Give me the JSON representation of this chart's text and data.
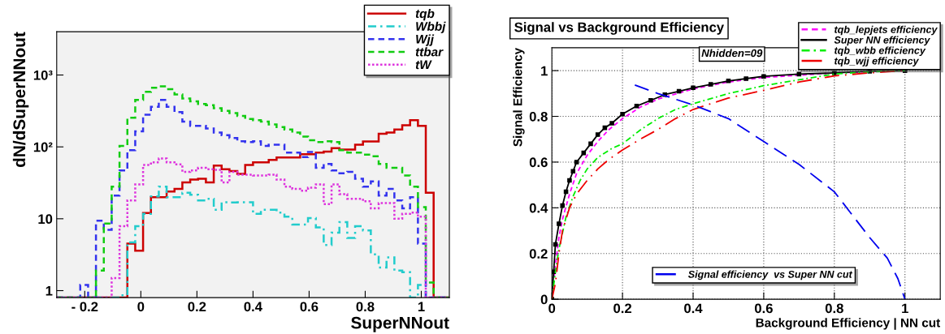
{
  "chart_data": [
    {
      "type": "histogram",
      "xlabel": "SuperNNout",
      "ylabel": "dN/dSuperNNout",
      "log": "y",
      "grid": false,
      "legend": "top right",
      "bins": [
        -0.3,
        -0.272,
        -0.244,
        -0.216,
        -0.188,
        -0.16,
        -0.132,
        -0.104,
        -0.076,
        -0.048,
        -0.02,
        0.008,
        0.036,
        0.064,
        0.092,
        0.12,
        0.148,
        0.176,
        0.204,
        0.232,
        0.26,
        0.288,
        0.316,
        0.344,
        0.372,
        0.4,
        0.428,
        0.456,
        0.484,
        0.512,
        0.54,
        0.568,
        0.596,
        0.624,
        0.652,
        0.68,
        0.708,
        0.736,
        0.764,
        0.792,
        0.82,
        0.848,
        0.876,
        0.904,
        0.932,
        0.96,
        0.988,
        1.016,
        1.044,
        1.072,
        1.1
      ],
      "xlim": [
        -0.3,
        1.1
      ],
      "xticks": [
        {
          "value": -0.2,
          "label": "- 0.2"
        },
        0,
        0.2,
        0.4,
        0.6,
        0.8,
        1
      ],
      "ylim": [
        0.8,
        4000
      ],
      "yticks": [
        1,
        10,
        {
          "value": 100,
          "label": "10²"
        },
        {
          "value": 1000,
          "label": "10³"
        }
      ],
      "series": [
        {
          "name": "tqb",
          "color": "#cc0000",
          "line_style": "solid",
          "values": [
            null,
            null,
            null,
            null,
            null,
            null,
            null,
            null,
            null,
            4.5,
            3.6,
            12,
            20,
            20,
            24,
            26,
            32,
            35,
            36,
            32,
            55,
            49,
            46,
            42,
            56,
            61,
            61,
            66,
            71,
            71,
            71,
            79,
            79,
            83,
            86,
            96,
            92,
            92,
            107,
            119,
            119,
            152,
            158,
            174,
            200,
            235,
            196,
            23,
            null,
            null
          ]
        },
        {
          "name": "Wbbj",
          "color": "#22cccc",
          "line_style": "dashdot",
          "values": [
            null,
            null,
            null,
            null,
            null,
            null,
            null,
            null,
            0.86,
            4.7,
            7.9,
            11.7,
            20.5,
            28,
            20,
            20,
            23,
            21.5,
            18,
            19,
            13.3,
            17,
            16.8,
            17,
            17,
            11.7,
            13.3,
            13.3,
            12.2,
            10.7,
            8.3,
            8.3,
            10.2,
            7.6,
            4.3,
            6.4,
            9,
            5.4,
            7.9,
            6.9,
            3.2,
            2.1,
            2.9,
            1.9,
            1.8,
            null,
            1.2,
            null,
            null,
            null
          ]
        },
        {
          "name": "Wjj",
          "color": "#3333ee",
          "line_style": "dashed",
          "values": [
            null,
            null,
            null,
            1.2,
            null,
            9.4,
            7,
            21,
            47,
            90,
            165,
            280,
            360,
            450,
            360,
            305,
            225,
            196,
            196,
            180,
            158,
            145,
            133,
            120,
            117,
            120,
            103,
            107,
            107,
            83,
            83,
            72,
            85,
            51,
            58,
            47,
            43,
            45,
            36,
            28,
            33,
            21,
            26,
            18,
            14,
            20,
            4.5,
            null,
            null,
            null
          ]
        },
        {
          "name": "ttbar",
          "color": "#11cc11",
          "line_style": "dashed",
          "values": [
            null,
            null,
            null,
            null,
            null,
            1.9,
            8.6,
            28,
            103,
            255,
            450,
            585,
            665,
            695,
            635,
            535,
            470,
            430,
            395,
            380,
            345,
            318,
            295,
            270,
            245,
            235,
            225,
            205,
            189,
            174,
            158,
            139,
            124,
            117,
            120,
            117,
            90,
            83,
            83,
            78,
            74,
            58,
            51,
            51,
            40,
            28,
            14.5,
            1.3,
            null,
            null
          ]
        },
        {
          "name": "tW",
          "color": "#dd33dd",
          "line_style": "dotted",
          "values": [
            null,
            null,
            null,
            null,
            null,
            null,
            null,
            1.5,
            7.9,
            18,
            30,
            56,
            61,
            69,
            61,
            57,
            45,
            47,
            51,
            49,
            48,
            32,
            45,
            41,
            41,
            40,
            40,
            41,
            35,
            28,
            26,
            24.5,
            27,
            30,
            16,
            30,
            22,
            19,
            19,
            17.5,
            14,
            16.5,
            16.5,
            10,
            11.7,
            12.2,
            10.7,
            null,
            null,
            null
          ]
        }
      ]
    },
    {
      "type": "line",
      "title": "Signal vs Background Efficiency",
      "xlabel": "Background Efficiency | NN cut",
      "ylabel": "Signal Efficiency",
      "grid": true,
      "legend": [
        "top right",
        "bottom"
      ],
      "annotations": [
        "Nhidden=09"
      ],
      "xlim": [
        0,
        1.1
      ],
      "xticks": [
        0,
        0.2,
        0.4,
        0.6,
        0.8,
        1
      ],
      "ylim": [
        0,
        1.1
      ],
      "yticks": [
        0,
        0.2,
        0.4,
        0.6,
        0.8,
        1
      ],
      "series": [
        {
          "name": "tqb_lepjets efficiency",
          "color": "#ff00ff",
          "line_style": "dashed",
          "x": [
            0,
            0.01,
            0.02,
            0.03,
            0.05,
            0.07,
            0.1,
            0.13,
            0.16,
            0.2,
            0.25,
            0.3,
            0.4,
            0.5,
            0.6,
            0.8,
            1
          ],
          "values": [
            0,
            0.15,
            0.27,
            0.35,
            0.46,
            0.55,
            0.63,
            0.69,
            0.74,
            0.79,
            0.84,
            0.875,
            0.92,
            0.95,
            0.97,
            0.99,
            1
          ]
        },
        {
          "name": "Super NN efficiency",
          "color": "#000000",
          "line_style": "solid",
          "marker": "square",
          "x": [
            0,
            0.005,
            0.01,
            0.02,
            0.03,
            0.04,
            0.05,
            0.06,
            0.07,
            0.09,
            0.11,
            0.13,
            0.15,
            0.17,
            0.2,
            0.24,
            0.28,
            0.32,
            0.36,
            0.4,
            0.45,
            0.5,
            0.55,
            0.6,
            0.7,
            0.8,
            0.9,
            1
          ],
          "values": [
            0,
            0.12,
            0.24,
            0.33,
            0.41,
            0.47,
            0.52,
            0.56,
            0.6,
            0.64,
            0.68,
            0.72,
            0.75,
            0.77,
            0.81,
            0.845,
            0.87,
            0.895,
            0.91,
            0.925,
            0.94,
            0.955,
            0.965,
            0.975,
            0.985,
            0.99,
            0.997,
            1
          ]
        },
        {
          "name": "tqb_wbb efficiency",
          "color": "#00ee00",
          "line_style": "dashdot",
          "x": [
            0,
            0.01,
            0.02,
            0.04,
            0.06,
            0.08,
            0.1,
            0.13,
            0.17,
            0.2,
            0.25,
            0.3,
            0.35,
            0.4,
            0.5,
            0.6,
            0.7,
            0.8,
            0.9,
            1
          ],
          "values": [
            0,
            0.12,
            0.22,
            0.36,
            0.45,
            0.52,
            0.57,
            0.62,
            0.66,
            0.68,
            0.74,
            0.79,
            0.83,
            0.855,
            0.9,
            0.934,
            0.96,
            0.985,
            0.995,
            1
          ]
        },
        {
          "name": "tqb_wjj efficiency",
          "color": "#ee0000",
          "line_style": "longdashdot",
          "x": [
            0,
            0.01,
            0.02,
            0.03,
            0.05,
            0.07,
            0.1,
            0.13,
            0.16,
            0.2,
            0.25,
            0.3,
            0.35,
            0.4,
            0.5,
            0.6,
            0.7,
            0.8,
            0.9,
            1
          ],
          "values": [
            0,
            0.07,
            0.2,
            0.3,
            0.4,
            0.46,
            0.52,
            0.57,
            0.61,
            0.653,
            0.7,
            0.742,
            0.79,
            0.83,
            0.88,
            0.914,
            0.95,
            0.977,
            0.99,
            1
          ]
        },
        {
          "name": "Signal efficiency  vs Super NN cut",
          "color": "#0000ee",
          "line_style": "longdash",
          "x": [
            0.235,
            0.3,
            0.4,
            0.5,
            0.6,
            0.7,
            0.8,
            0.9,
            0.95,
            0.98,
            1
          ],
          "values": [
            0.937,
            0.9,
            0.85,
            0.79,
            0.69,
            0.59,
            0.47,
            0.27,
            0.18,
            0.09,
            0
          ]
        }
      ]
    }
  ]
}
